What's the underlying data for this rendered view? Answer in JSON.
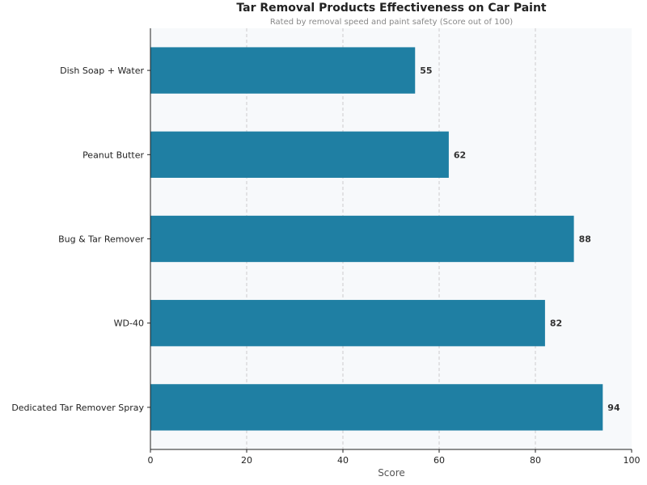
{
  "chart_data": {
    "type": "bar",
    "orientation": "horizontal",
    "title": "Tar Removal Products Effectiveness on Car Paint",
    "subtitle": "Rated by removal speed and paint safety (Score out of 100)",
    "xlabel": "Score",
    "ylabel": "",
    "categories": [
      "Dish Soap + Water",
      "Peanut Butter",
      "Bug & Tar Remover",
      "WD-40",
      "Dedicated Tar Remover Spray"
    ],
    "values": [
      55,
      62,
      88,
      82,
      94
    ],
    "xlim": [
      0,
      100
    ],
    "xticks": [
      0,
      20,
      40,
      60,
      80,
      100
    ],
    "grid": "x dashed",
    "bar_color": "#1f7fa3",
    "background": "#f7f9fb"
  }
}
